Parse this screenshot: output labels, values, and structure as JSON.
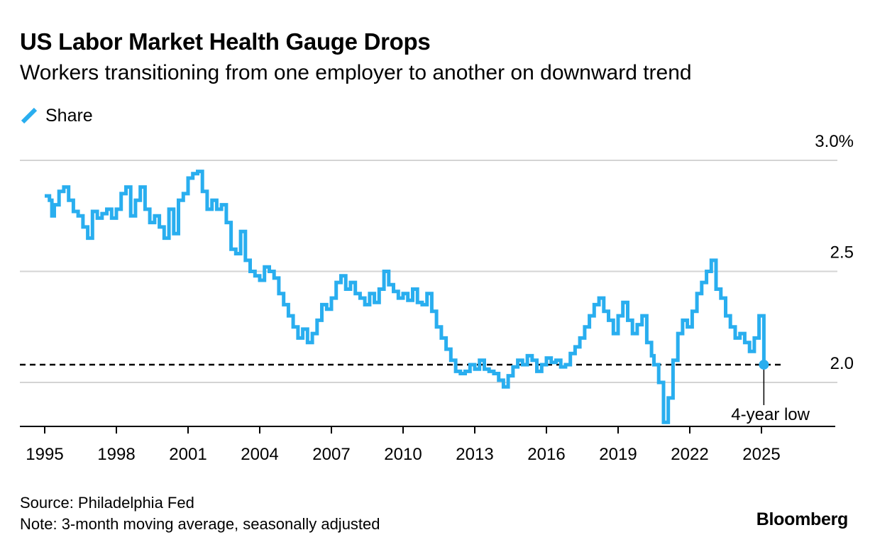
{
  "header": {
    "title": "US Labor Market Health Gauge Drops",
    "subtitle": "Workers transitioning from one employer to another on downward trend"
  },
  "legend": {
    "label": "Share",
    "icon": "diagonal-line-icon",
    "color": "#29aeef"
  },
  "footer": {
    "source": "Source: Philadelphia Fed",
    "note": "Note: 3-month moving average, seasonally adjusted",
    "brand": "Bloomberg"
  },
  "chart_data": {
    "type": "line",
    "title": "US Labor Market Health Gauge Drops",
    "subtitle": "Workers transitioning from one employer to another on downward trend",
    "xlabel": "",
    "ylabel": "",
    "xlim": [
      1994.0,
      2026.5
    ],
    "ylim": [
      1.8,
      3.0
    ],
    "x_ticks": [
      1995,
      1998,
      2001,
      2004,
      2007,
      2010,
      2013,
      2016,
      2019,
      2022,
      2025
    ],
    "x_tick_labels": [
      "1995",
      "1998",
      "2001",
      "2004",
      "2007",
      "2010",
      "2013",
      "2016",
      "2019",
      "2022",
      "2025"
    ],
    "y_ticks": [
      2.0,
      2.5,
      3.0
    ],
    "y_tick_labels": [
      "2.0",
      "2.5",
      "3.0%"
    ],
    "grid": "horizontal",
    "legend_position": "top-left",
    "series": [
      {
        "name": "Share",
        "color": "#29aeef",
        "points": [
          [
            1995.0,
            2.84
          ],
          [
            1995.2,
            2.82
          ],
          [
            1995.3,
            2.75
          ],
          [
            1995.4,
            2.8
          ],
          [
            1995.6,
            2.86
          ],
          [
            1995.8,
            2.88
          ],
          [
            1996.0,
            2.82
          ],
          [
            1996.2,
            2.77
          ],
          [
            1996.4,
            2.75
          ],
          [
            1996.6,
            2.7
          ],
          [
            1996.8,
            2.65
          ],
          [
            1997.0,
            2.77
          ],
          [
            1997.2,
            2.74
          ],
          [
            1997.4,
            2.76
          ],
          [
            1997.6,
            2.78
          ],
          [
            1997.8,
            2.74
          ],
          [
            1998.0,
            2.78
          ],
          [
            1998.2,
            2.85
          ],
          [
            1998.4,
            2.88
          ],
          [
            1998.6,
            2.75
          ],
          [
            1998.8,
            2.82
          ],
          [
            1999.0,
            2.88
          ],
          [
            1999.2,
            2.78
          ],
          [
            1999.4,
            2.72
          ],
          [
            1999.6,
            2.75
          ],
          [
            1999.8,
            2.7
          ],
          [
            2000.0,
            2.65
          ],
          [
            2000.2,
            2.78
          ],
          [
            2000.4,
            2.67
          ],
          [
            2000.6,
            2.82
          ],
          [
            2000.8,
            2.85
          ],
          [
            2001.0,
            2.92
          ],
          [
            2001.2,
            2.94
          ],
          [
            2001.4,
            2.95
          ],
          [
            2001.6,
            2.86
          ],
          [
            2001.8,
            2.78
          ],
          [
            2002.0,
            2.82
          ],
          [
            2002.2,
            2.78
          ],
          [
            2002.4,
            2.8
          ],
          [
            2002.6,
            2.72
          ],
          [
            2002.8,
            2.6
          ],
          [
            2003.0,
            2.58
          ],
          [
            2003.2,
            2.68
          ],
          [
            2003.4,
            2.55
          ],
          [
            2003.6,
            2.5
          ],
          [
            2003.8,
            2.48
          ],
          [
            2004.0,
            2.46
          ],
          [
            2004.2,
            2.52
          ],
          [
            2004.4,
            2.5
          ],
          [
            2004.6,
            2.47
          ],
          [
            2004.8,
            2.4
          ],
          [
            2005.0,
            2.35
          ],
          [
            2005.2,
            2.3
          ],
          [
            2005.4,
            2.25
          ],
          [
            2005.6,
            2.2
          ],
          [
            2005.8,
            2.24
          ],
          [
            2006.0,
            2.18
          ],
          [
            2006.2,
            2.22
          ],
          [
            2006.4,
            2.28
          ],
          [
            2006.6,
            2.35
          ],
          [
            2006.8,
            2.33
          ],
          [
            2007.0,
            2.38
          ],
          [
            2007.2,
            2.45
          ],
          [
            2007.4,
            2.48
          ],
          [
            2007.6,
            2.42
          ],
          [
            2007.8,
            2.45
          ],
          [
            2008.0,
            2.4
          ],
          [
            2008.2,
            2.38
          ],
          [
            2008.4,
            2.35
          ],
          [
            2008.6,
            2.4
          ],
          [
            2008.8,
            2.36
          ],
          [
            2009.0,
            2.42
          ],
          [
            2009.2,
            2.5
          ],
          [
            2009.4,
            2.44
          ],
          [
            2009.6,
            2.41
          ],
          [
            2009.8,
            2.38
          ],
          [
            2010.0,
            2.4
          ],
          [
            2010.2,
            2.37
          ],
          [
            2010.4,
            2.42
          ],
          [
            2010.6,
            2.36
          ],
          [
            2010.8,
            2.35
          ],
          [
            2011.0,
            2.4
          ],
          [
            2011.2,
            2.32
          ],
          [
            2011.4,
            2.25
          ],
          [
            2011.6,
            2.2
          ],
          [
            2011.8,
            2.15
          ],
          [
            2012.0,
            2.1
          ],
          [
            2012.2,
            2.05
          ],
          [
            2012.4,
            2.04
          ],
          [
            2012.6,
            2.05
          ],
          [
            2012.8,
            2.08
          ],
          [
            2013.0,
            2.06
          ],
          [
            2013.2,
            2.1
          ],
          [
            2013.4,
            2.06
          ],
          [
            2013.6,
            2.05
          ],
          [
            2013.8,
            2.04
          ],
          [
            2014.0,
            2.01
          ],
          [
            2014.2,
            1.98
          ],
          [
            2014.4,
            2.03
          ],
          [
            2014.6,
            2.07
          ],
          [
            2014.8,
            2.1
          ],
          [
            2015.0,
            2.08
          ],
          [
            2015.2,
            2.12
          ],
          [
            2015.4,
            2.1
          ],
          [
            2015.6,
            2.05
          ],
          [
            2015.8,
            2.08
          ],
          [
            2016.0,
            2.11
          ],
          [
            2016.2,
            2.09
          ],
          [
            2016.4,
            2.1
          ],
          [
            2016.6,
            2.07
          ],
          [
            2016.8,
            2.08
          ],
          [
            2017.0,
            2.13
          ],
          [
            2017.2,
            2.16
          ],
          [
            2017.4,
            2.2
          ],
          [
            2017.6,
            2.25
          ],
          [
            2017.8,
            2.3
          ],
          [
            2018.0,
            2.35
          ],
          [
            2018.2,
            2.38
          ],
          [
            2018.4,
            2.32
          ],
          [
            2018.6,
            2.28
          ],
          [
            2018.8,
            2.22
          ],
          [
            2019.0,
            2.3
          ],
          [
            2019.2,
            2.36
          ],
          [
            2019.4,
            2.28
          ],
          [
            2019.6,
            2.22
          ],
          [
            2019.8,
            2.26
          ],
          [
            2020.0,
            2.3
          ],
          [
            2020.2,
            2.18
          ],
          [
            2020.4,
            2.12
          ],
          [
            2020.5,
            2.08
          ],
          [
            2020.7,
            2.0
          ],
          [
            2020.9,
            1.82
          ],
          [
            2021.1,
            1.93
          ],
          [
            2021.3,
            2.1
          ],
          [
            2021.5,
            2.22
          ],
          [
            2021.7,
            2.28
          ],
          [
            2021.9,
            2.25
          ],
          [
            2022.1,
            2.32
          ],
          [
            2022.3,
            2.4
          ],
          [
            2022.5,
            2.45
          ],
          [
            2022.7,
            2.5
          ],
          [
            2022.9,
            2.55
          ],
          [
            2023.1,
            2.42
          ],
          [
            2023.3,
            2.38
          ],
          [
            2023.5,
            2.3
          ],
          [
            2023.7,
            2.25
          ],
          [
            2023.9,
            2.2
          ],
          [
            2024.1,
            2.22
          ],
          [
            2024.3,
            2.18
          ],
          [
            2024.5,
            2.14
          ],
          [
            2024.7,
            2.2
          ],
          [
            2024.9,
            2.3
          ],
          [
            2025.1,
            2.1
          ]
        ]
      }
    ],
    "reference_lines": [
      {
        "axis": "y",
        "value": 2.08,
        "style": "dashed"
      }
    ],
    "annotations": [
      {
        "text": "4-year low",
        "x": 2025.1,
        "y": 2.08
      }
    ]
  }
}
